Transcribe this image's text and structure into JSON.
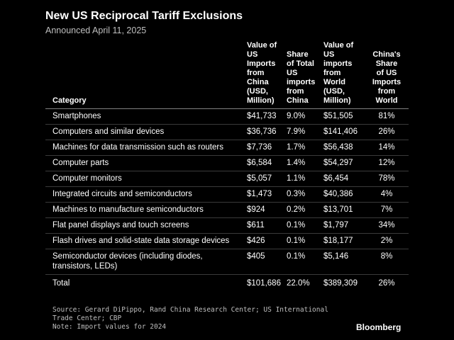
{
  "title": "New US Reciprocal Tariff Exclusions",
  "subtitle": "Announced April 11, 2025",
  "chart_data": {
    "type": "table",
    "headers": [
      {
        "lines": [
          "Category"
        ]
      },
      {
        "lines": [
          "Value of",
          "US",
          "Imports",
          "from",
          "China",
          "(USD,",
          "Million)"
        ]
      },
      {
        "lines": [
          "Share",
          "of Total",
          "US",
          "imports",
          "from",
          "China"
        ]
      },
      {
        "lines": [
          "Value of",
          "US",
          "imports",
          "from",
          "World",
          "(USD,",
          "Million)"
        ]
      },
      {
        "lines": [
          "China's",
          "Share",
          "of US",
          "Imports",
          "from",
          "World"
        ]
      }
    ],
    "rows": [
      {
        "category": "Smartphones",
        "china_value": "$41,733",
        "share_total": "9.0%",
        "world_value": "$51,505",
        "china_share": "81%"
      },
      {
        "category": "Computers and similar devices",
        "china_value": "$36,736",
        "share_total": "7.9%",
        "world_value": "$141,406",
        "china_share": "26%"
      },
      {
        "category": "Machines for data transmission such as routers",
        "china_value": "$7,736",
        "share_total": "1.7%",
        "world_value": "$56,438",
        "china_share": "14%"
      },
      {
        "category": "Computer parts",
        "china_value": "$6,584",
        "share_total": "1.4%",
        "world_value": "$54,297",
        "china_share": "12%"
      },
      {
        "category": "Computer monitors",
        "china_value": "$5,057",
        "share_total": "1.1%",
        "world_value": "$6,454",
        "china_share": "78%"
      },
      {
        "category": "Integrated circuits and semiconductors",
        "china_value": "$1,473",
        "share_total": "0.3%",
        "world_value": "$40,386",
        "china_share": "4%"
      },
      {
        "category": "Machines to manufacture semiconductors",
        "china_value": "$924",
        "share_total": "0.2%",
        "world_value": "$13,701",
        "china_share": "7%"
      },
      {
        "category": "Flat panel displays and touch screens",
        "china_value": "$611",
        "share_total": "0.1%",
        "world_value": "$1,797",
        "china_share": "34%"
      },
      {
        "category": "Flash drives and solid-state data storage devices",
        "china_value": "$426",
        "share_total": "0.1%",
        "world_value": "$18,177",
        "china_share": "2%"
      },
      {
        "category": "Semiconductor devices (including diodes, transistors, LEDs)",
        "china_value": "$405",
        "share_total": "0.1%",
        "world_value": "$5,146",
        "china_share": "8%"
      },
      {
        "category": "Total",
        "china_value": "$101,686",
        "share_total": "22.0%",
        "world_value": "$389,309",
        "china_share": "26%"
      }
    ]
  },
  "source_lines": [
    "Source: Gerard DiPippo, Rand China Research Center; US International",
    "Trade Center; CBP",
    "Note: Import values for 2024"
  ],
  "logo": "Bloomberg",
  "colors": {
    "background": "#000000",
    "text": "#ffffff",
    "muted_text": "#bfbfbf",
    "rule": "#3a3a3a"
  }
}
